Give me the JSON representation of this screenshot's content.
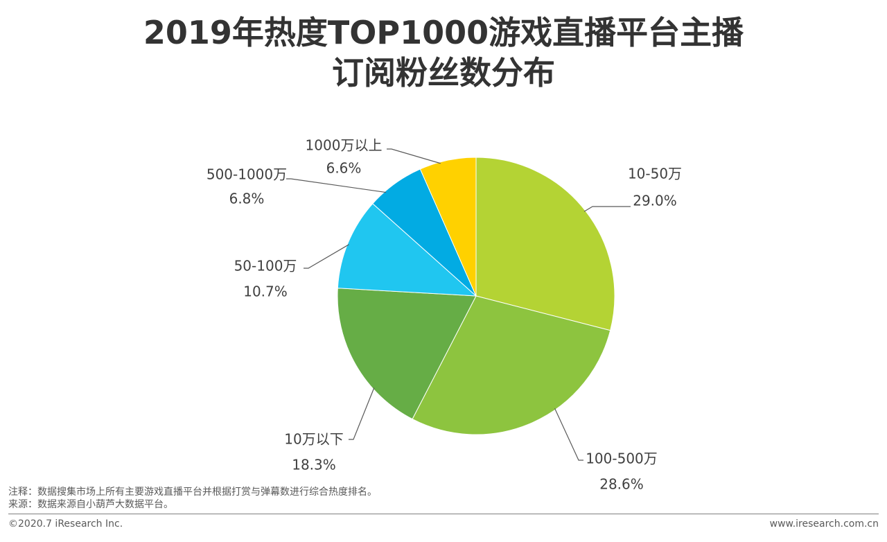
{
  "title_line1": "2019年热度TOP1000游戏直播平台主播",
  "title_line2": "订阅粉丝数分布",
  "chart_data": {
    "type": "pie",
    "title": "2019年热度TOP1000游戏直播平台主播订阅粉丝数分布",
    "slices": [
      {
        "label": "10-50万",
        "value": 29.0,
        "value_label": "29.0%",
        "color": "#b4d334"
      },
      {
        "label": "100-500万",
        "value": 28.6,
        "value_label": "28.6%",
        "color": "#8dc43f"
      },
      {
        "label": "10万以下",
        "value": 18.3,
        "value_label": "18.3%",
        "color": "#66ad46"
      },
      {
        "label": "50-100万",
        "value": 10.7,
        "value_label": "10.7%",
        "color": "#20c6f0"
      },
      {
        "label": "500-1000万",
        "value": 6.8,
        "value_label": "6.8%",
        "color": "#02abe3"
      },
      {
        "label": "1000万以上",
        "value": 6.6,
        "value_label": "6.6%",
        "color": "#ffd100"
      }
    ],
    "leader_color": "#595959"
  },
  "notes": {
    "note": "注释：数据搜集市场上所有主要游戏直播平台并根据打赏与弹幕数进行综合热度排名。",
    "source": "来源：数据来源自小葫芦大数据平台。"
  },
  "footer": {
    "copyright": "©2020.7 iResearch Inc.",
    "website": "www.iresearch.com.cn"
  }
}
